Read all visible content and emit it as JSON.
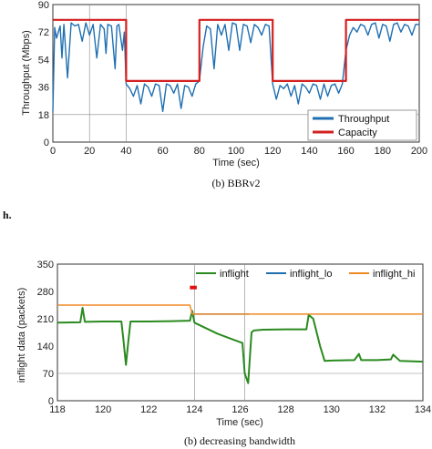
{
  "page": {
    "stray_text": "h."
  },
  "colors": {
    "throughput": "#1f6fb2",
    "capacity": "#d42020",
    "inflight": "#2a8a1f",
    "inflight_lo": "#1f6fb2",
    "inflight_hi": "#f08a24",
    "marker": "#e01010",
    "grid": "#888888"
  },
  "chart_data": [
    {
      "type": "line",
      "caption": "(b) BBRv2",
      "xlabel": "Time (sec)",
      "ylabel": "Throughput (Mbps)",
      "xlim": [
        0,
        200
      ],
      "ylim": [
        0,
        90
      ],
      "xticks": [
        "0",
        "20",
        "40",
        "60",
        "80",
        "100",
        "120",
        "140",
        "160",
        "180",
        "200"
      ],
      "yticks": [
        "0",
        "18",
        "36",
        "54",
        "72",
        "90"
      ],
      "grid": "selected lines",
      "legend": "bottom-right",
      "series": [
        {
          "name": "Throughput",
          "x": [
            0,
            1,
            2,
            4,
            5,
            6,
            8,
            10,
            12,
            14,
            16,
            18,
            20,
            22,
            24,
            26,
            28,
            29,
            30,
            32,
            34,
            35,
            36,
            38,
            39,
            40,
            42,
            44,
            46,
            48,
            50,
            52,
            54,
            56,
            58,
            60,
            62,
            64,
            66,
            68,
            70,
            72,
            74,
            76,
            78,
            80,
            82,
            84,
            86,
            88,
            90,
            92,
            94,
            96,
            98,
            100,
            102,
            104,
            106,
            108,
            110,
            112,
            114,
            116,
            118,
            120,
            122,
            124,
            126,
            128,
            130,
            132,
            134,
            136,
            138,
            140,
            142,
            144,
            146,
            148,
            150,
            152,
            154,
            156,
            158,
            160,
            162,
            164,
            166,
            168,
            170,
            172,
            174,
            176,
            178,
            180,
            182,
            184,
            186,
            188,
            190,
            192,
            194,
            196,
            198,
            200
          ],
          "values": [
            20,
            75,
            68,
            76,
            55,
            77,
            42,
            78,
            76,
            77,
            66,
            78,
            70,
            77,
            55,
            77,
            74,
            58,
            77,
            76,
            48,
            76,
            77,
            60,
            72,
            38,
            35,
            30,
            37,
            25,
            38,
            36,
            30,
            38,
            37,
            20,
            38,
            37,
            32,
            38,
            22,
            37,
            36,
            30,
            38,
            40,
            62,
            76,
            74,
            48,
            77,
            70,
            77,
            60,
            78,
            77,
            60,
            77,
            76,
            65,
            77,
            75,
            70,
            77,
            76,
            38,
            28,
            37,
            35,
            38,
            30,
            37,
            25,
            38,
            36,
            32,
            38,
            37,
            28,
            38,
            30,
            37,
            38,
            32,
            38,
            60,
            70,
            75,
            72,
            77,
            76,
            70,
            77,
            78,
            68,
            77,
            76,
            66,
            77,
            78,
            72,
            77,
            76,
            70,
            77,
            77
          ]
        },
        {
          "name": "Capacity",
          "x": [
            0,
            40,
            40,
            80,
            80,
            120,
            120,
            160,
            160,
            200
          ],
          "values": [
            80,
            80,
            40,
            40,
            80,
            80,
            40,
            40,
            80,
            80
          ]
        }
      ]
    },
    {
      "type": "line",
      "caption": "(b) decreasing bandwidth",
      "xlabel": "Time (sec)",
      "ylabel": "inflight data (packets)",
      "xlim": [
        118,
        134
      ],
      "ylim": [
        0,
        350
      ],
      "xticks": [
        "118",
        "120",
        "122",
        "124",
        "126",
        "128",
        "130",
        "132",
        "134"
      ],
      "yticks": [
        "0",
        "70",
        "140",
        "210",
        "280",
        "350"
      ],
      "grid": "selected lines",
      "legend": "top",
      "series": [
        {
          "name": "inflight",
          "x": [
            118,
            119,
            119.1,
            119.2,
            120,
            120.8,
            120.9,
            121.0,
            121.1,
            121.2,
            122,
            123,
            123.8,
            123.9,
            124.0,
            125,
            126,
            126.1,
            126.2,
            126.35,
            126.5,
            126.6,
            127,
            128,
            128.9,
            129.0,
            129.2,
            129.5,
            129.7,
            130,
            131,
            131.2,
            131.3,
            132,
            132.6,
            132.7,
            133,
            134
          ],
          "values": [
            200,
            201,
            238,
            202,
            203,
            203,
            150,
            92,
            150,
            203,
            203,
            204,
            205,
            230,
            200,
            172,
            150,
            148,
            70,
            45,
            175,
            180,
            182,
            183,
            183,
            220,
            210,
            140,
            102,
            103,
            104,
            120,
            104,
            104,
            106,
            118,
            102,
            100
          ]
        },
        {
          "name": "inflight_lo",
          "x": [
            123.9,
            126.4
          ],
          "values": [
            222,
            222
          ]
        },
        {
          "name": "inflight_hi",
          "x": [
            118,
            123.8,
            123.9,
            134
          ],
          "values": [
            245,
            245,
            222,
            222
          ]
        }
      ],
      "marker": {
        "x": [
          123.8,
          124.1
        ],
        "y": 290
      }
    }
  ]
}
